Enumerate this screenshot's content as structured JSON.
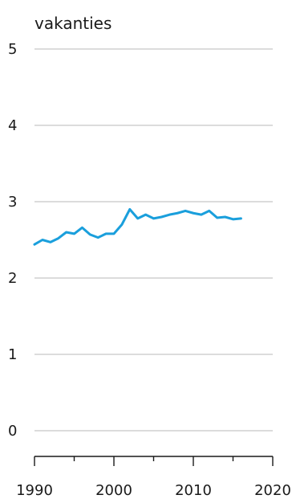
{
  "chart_data": {
    "type": "line",
    "title": "",
    "ylabel": "vakanties",
    "xlabel": "",
    "ylim": [
      0,
      5
    ],
    "xlim": [
      1990,
      2020
    ],
    "yticks": [
      0,
      1,
      2,
      3,
      4,
      5
    ],
    "xticks": [
      1990,
      2000,
      2010,
      2020
    ],
    "xminor_ticks": [
      1995,
      2005,
      2015
    ],
    "grid": true,
    "color": "#1a9fdc",
    "series": [
      {
        "x": [
          1990,
          1991,
          1992,
          1993,
          1994,
          1995,
          1996,
          1997,
          1998,
          1999,
          2000,
          2001,
          2002,
          2003,
          2004,
          2005,
          2006,
          2007,
          2008,
          2009,
          2010,
          2011,
          2012,
          2013,
          2014,
          2015,
          2016
        ],
        "values": [
          2.44,
          2.5,
          2.47,
          2.52,
          2.6,
          2.58,
          2.66,
          2.57,
          2.53,
          2.58,
          2.58,
          2.7,
          2.9,
          2.78,
          2.83,
          2.78,
          2.8,
          2.83,
          2.85,
          2.88,
          2.85,
          2.83,
          2.88,
          2.79,
          2.8,
          2.77,
          2.78
        ]
      }
    ]
  }
}
